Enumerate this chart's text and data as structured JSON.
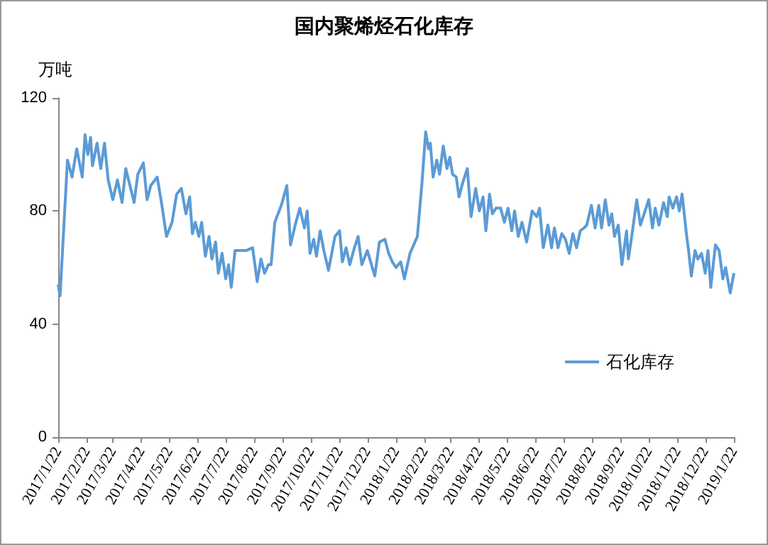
{
  "chart_data": {
    "type": "line",
    "title": "国内聚烯烃石化库存",
    "ylabel": "万吨",
    "x": [
      "2017-01-22",
      "2017-01-24",
      "2017-02-01",
      "2017-02-06",
      "2017-02-11",
      "2017-02-17",
      "2017-02-20",
      "2017-02-23",
      "2017-02-26",
      "2017-02-28",
      "2017-03-05",
      "2017-03-09",
      "2017-03-13",
      "2017-03-17",
      "2017-03-22",
      "2017-03-27",
      "2017-04-01",
      "2017-04-05",
      "2017-04-14",
      "2017-04-18",
      "2017-04-24",
      "2017-04-28",
      "2017-05-02",
      "2017-05-09",
      "2017-05-14",
      "2017-05-19",
      "2017-05-25",
      "2017-05-30",
      "2017-06-04",
      "2017-06-09",
      "2017-06-13",
      "2017-06-16",
      "2017-06-19",
      "2017-06-23",
      "2017-06-26",
      "2017-06-30",
      "2017-07-04",
      "2017-07-07",
      "2017-07-11",
      "2017-07-14",
      "2017-07-18",
      "2017-07-22",
      "2017-07-25",
      "2017-07-28",
      "2017-08-01",
      "2017-08-07",
      "2017-08-13",
      "2017-08-20",
      "2017-08-25",
      "2017-08-29",
      "2017-09-02",
      "2017-09-06",
      "2017-09-09",
      "2017-09-13",
      "2017-09-20",
      "2017-09-26",
      "2017-09-30",
      "2017-10-05",
      "2017-10-10",
      "2017-10-15",
      "2017-10-18",
      "2017-10-21",
      "2017-10-25",
      "2017-10-28",
      "2017-11-01",
      "2017-11-05",
      "2017-11-10",
      "2017-11-17",
      "2017-11-22",
      "2017-11-25",
      "2017-11-29",
      "2017-12-03",
      "2017-12-08",
      "2017-12-12",
      "2017-12-16",
      "2017-12-22",
      "2017-12-30",
      "2018-01-04",
      "2018-01-10",
      "2018-01-14",
      "2018-01-18",
      "2018-01-22",
      "2018-01-27",
      "2018-01-31",
      "2018-02-06",
      "2018-02-14",
      "2018-02-19",
      "2018-02-23",
      "2018-02-26",
      "2018-02-28",
      "2018-03-03",
      "2018-03-07",
      "2018-03-10",
      "2018-03-14",
      "2018-03-18",
      "2018-03-21",
      "2018-03-24",
      "2018-03-28",
      "2018-03-31",
      "2018-04-04",
      "2018-04-09",
      "2018-04-13",
      "2018-04-18",
      "2018-04-22",
      "2018-04-26",
      "2018-04-29",
      "2018-05-03",
      "2018-05-06",
      "2018-05-10",
      "2018-05-15",
      "2018-05-19",
      "2018-05-23",
      "2018-05-27",
      "2018-05-30",
      "2018-06-03",
      "2018-06-07",
      "2018-06-12",
      "2018-06-18",
      "2018-06-23",
      "2018-06-26",
      "2018-06-30",
      "2018-07-05",
      "2018-07-09",
      "2018-07-12",
      "2018-07-16",
      "2018-07-20",
      "2018-07-24",
      "2018-07-28",
      "2018-08-01",
      "2018-08-05",
      "2018-08-09",
      "2018-08-13",
      "2018-08-16",
      "2018-08-21",
      "2018-08-25",
      "2018-08-29",
      "2018-09-01",
      "2018-09-05",
      "2018-09-09",
      "2018-09-12",
      "2018-09-15",
      "2018-09-19",
      "2018-09-23",
      "2018-09-28",
      "2018-09-30",
      "2018-10-04",
      "2018-10-09",
      "2018-10-13",
      "2018-10-17",
      "2018-10-22",
      "2018-10-26",
      "2018-10-29",
      "2018-11-02",
      "2018-11-07",
      "2018-11-11",
      "2018-11-13",
      "2018-11-17",
      "2018-11-21",
      "2018-11-24",
      "2018-11-27",
      "2018-12-02",
      "2018-12-04",
      "2018-12-07",
      "2018-12-11",
      "2018-12-14",
      "2018-12-18",
      "2018-12-22",
      "2018-12-25",
      "2018-12-28",
      "2019-01-02",
      "2019-01-06",
      "2019-01-10",
      "2019-01-13",
      "2019-01-18",
      "2019-01-22"
    ],
    "series": [
      {
        "name": "石化库存",
        "color": "#5b9bd5",
        "values": [
          54,
          50,
          98,
          92,
          102,
          92,
          107,
          100,
          106,
          96,
          104,
          95,
          104,
          91,
          84,
          91,
          83,
          95,
          83,
          93,
          97,
          84,
          89,
          92,
          82,
          71,
          76,
          86,
          88,
          79,
          85,
          72,
          76,
          71,
          76,
          64,
          71,
          63,
          69,
          58,
          65,
          56,
          61,
          53,
          66,
          66,
          66,
          67,
          55,
          63,
          58,
          61,
          61,
          76,
          82,
          89,
          68,
          75,
          81,
          74,
          80,
          65,
          70,
          64,
          73,
          66,
          59,
          71,
          73,
          62,
          67,
          61,
          67,
          71,
          61,
          66,
          57,
          69,
          70,
          65,
          62,
          60,
          62,
          56,
          65,
          71,
          90,
          108,
          102,
          104,
          92,
          98,
          93,
          103,
          95,
          99,
          93,
          92,
          85,
          90,
          95,
          78,
          88,
          80,
          85,
          73,
          86,
          79,
          81,
          81,
          76,
          81,
          73,
          80,
          71,
          76,
          69,
          80,
          78,
          81,
          67,
          75,
          67,
          74,
          67,
          72,
          70,
          65,
          72,
          67,
          73,
          74,
          75,
          82,
          74,
          82,
          74,
          84,
          75,
          79,
          71,
          75,
          61,
          73,
          63,
          72,
          84,
          75,
          79,
          84,
          74,
          81,
          75,
          83,
          78,
          85,
          81,
          85,
          80,
          86,
          71,
          66,
          57,
          66,
          63,
          65,
          58,
          66,
          53,
          68,
          66,
          56,
          60,
          51,
          58
        ]
      }
    ],
    "ylim": [
      0,
      120
    ],
    "yticks": [
      0,
      40,
      80,
      120
    ],
    "xlim": [
      "2017-01-22",
      "2019-01-22"
    ],
    "xticks": [
      {
        "value": "2017-01-22",
        "label": "2017/1/22"
      },
      {
        "value": "2017-02-22",
        "label": "2017/2/22"
      },
      {
        "value": "2017-03-22",
        "label": "2017/3/22"
      },
      {
        "value": "2017-04-22",
        "label": "2017/4/22"
      },
      {
        "value": "2017-05-22",
        "label": "2017/5/22"
      },
      {
        "value": "2017-06-22",
        "label": "2017/6/22"
      },
      {
        "value": "2017-07-22",
        "label": "2017/7/22"
      },
      {
        "value": "2017-08-22",
        "label": "2017/8/22"
      },
      {
        "value": "2017-09-22",
        "label": "2017/9/22"
      },
      {
        "value": "2017-10-22",
        "label": "2017/10/22"
      },
      {
        "value": "2017-11-22",
        "label": "2017/11/22"
      },
      {
        "value": "2017-12-22",
        "label": "2017/12/22"
      },
      {
        "value": "2018-01-22",
        "label": "2018/1/22"
      },
      {
        "value": "2018-02-22",
        "label": "2018/2/22"
      },
      {
        "value": "2018-03-22",
        "label": "2018/3/22"
      },
      {
        "value": "2018-04-22",
        "label": "2018/4/22"
      },
      {
        "value": "2018-05-22",
        "label": "2018/5/22"
      },
      {
        "value": "2018-06-22",
        "label": "2018/6/22"
      },
      {
        "value": "2018-07-22",
        "label": "2018/7/22"
      },
      {
        "value": "2018-08-22",
        "label": "2018/8/22"
      },
      {
        "value": "2018-09-22",
        "label": "2018/9/22"
      },
      {
        "value": "2018-10-22",
        "label": "2018/10/22"
      },
      {
        "value": "2018-11-22",
        "label": "2018/11/22"
      },
      {
        "value": "2018-12-22",
        "label": "2018/12/22"
      },
      {
        "value": "2019-01-22",
        "label": "2019/1/22"
      }
    ],
    "grid": false,
    "legend": "bottom right",
    "marker": "none",
    "line_style": "solid"
  }
}
